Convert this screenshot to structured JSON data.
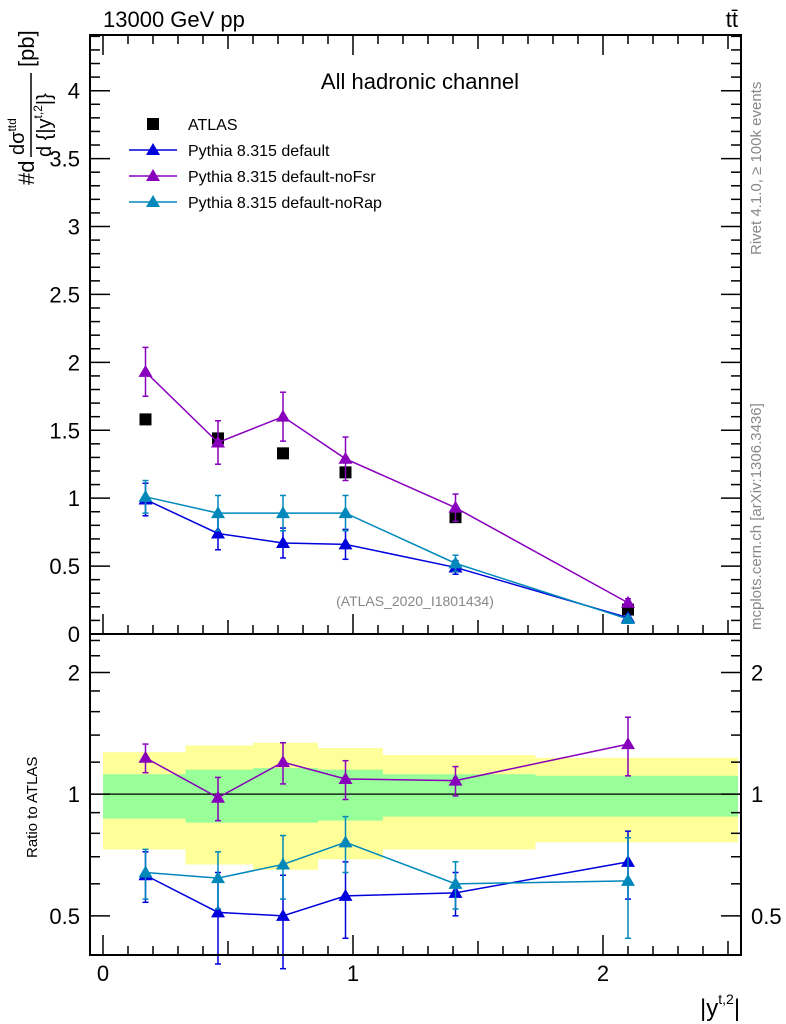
{
  "header": {
    "left": "13000 GeV pp",
    "right": "tt̄"
  },
  "side_text": {
    "rivet": "Rivet 4.1.0, ≥ 100k events",
    "mcplots": "mcplots.cern.ch [arXiv:1306.3436]"
  },
  "chart_data": [
    {
      "type": "scatter",
      "title": "All hadronic channel",
      "analysis_label": "(ATLAS_2020_I1801434)",
      "ylabel": {
        "prefix": "#d",
        "num": "dσ",
        "num_sup": "ttd",
        "den": "d {|y",
        "den_sup": "t,2",
        "den_end": "|}",
        "unit": "[pb]"
      },
      "xlim": [
        -0.052,
        2.552
      ],
      "ylim": [
        0,
        4.41
      ],
      "yticks": [
        "0",
        "0.5",
        "1",
        "1.5",
        "2",
        "2.5",
        "3",
        "3.5",
        "4"
      ],
      "x": [
        0.17,
        0.46,
        0.72,
        0.97,
        1.41,
        2.1
      ],
      "legend_position": "top-left",
      "series": [
        {
          "name": "ATLAS",
          "color": "#000000",
          "marker": "square",
          "values": [
            1.58,
            1.44,
            1.33,
            1.19,
            0.86,
            0.18
          ],
          "errors": [
            0.02,
            0.02,
            0.02,
            0.02,
            0.02,
            0.01
          ]
        },
        {
          "name": "Pythia 8.315 default",
          "color": "#0000dd",
          "marker": "triangle",
          "values": [
            0.99,
            0.74,
            0.67,
            0.66,
            0.49,
            0.12
          ],
          "errors": [
            0.12,
            0.12,
            0.11,
            0.11,
            0.05,
            0.02
          ]
        },
        {
          "name": "Pythia 8.315 default-noFsr",
          "color": "#8800bb",
          "marker": "triangle",
          "values": [
            1.93,
            1.41,
            1.6,
            1.29,
            0.93,
            0.23
          ],
          "errors": [
            0.18,
            0.16,
            0.18,
            0.16,
            0.1,
            0.03
          ]
        },
        {
          "name": "Pythia 8.315 default-noRap",
          "color": "#0088bb",
          "marker": "triangle",
          "values": [
            1.01,
            0.89,
            0.89,
            0.89,
            0.52,
            0.11
          ],
          "errors": [
            0.12,
            0.13,
            0.13,
            0.13,
            0.06,
            0.02
          ]
        }
      ]
    },
    {
      "type": "scatter",
      "ylabel": "Ratio to ATLAS",
      "xlabel": "|y",
      "xlabel_sup": "t,2",
      "xlabel_end": "|",
      "yscale": "log",
      "ylim": [
        0.4,
        2.49
      ],
      "yticks": [
        "0.5",
        "1",
        "2"
      ],
      "xticks": [
        "0",
        "1",
        "2"
      ],
      "x": [
        0.17,
        0.46,
        0.72,
        0.97,
        1.41,
        2.1
      ],
      "bin_edges": [
        0,
        0.33,
        0.6,
        0.86,
        1.12,
        1.73,
        2.54
      ],
      "band_total": {
        "color": "#ffff99",
        "upper": [
          1.27,
          1.32,
          1.34,
          1.3,
          1.25,
          1.23
        ],
        "lower": [
          0.73,
          0.67,
          0.65,
          0.69,
          0.73,
          0.76
        ]
      },
      "band_stat": {
        "color": "#99ff99",
        "upper": [
          1.12,
          1.15,
          1.16,
          1.15,
          1.12,
          1.11
        ],
        "lower": [
          0.87,
          0.85,
          0.85,
          0.86,
          0.88,
          0.88
        ]
      },
      "series": [
        {
          "name": "Pythia 8.315 default",
          "color": "#0000dd",
          "values": [
            0.63,
            0.51,
            0.5,
            0.56,
            0.57,
            0.68
          ],
          "errors": [
            0.09,
            0.13,
            0.13,
            0.12,
            0.07,
            0.13
          ]
        },
        {
          "name": "Pythia 8.315 default-noFsr",
          "color": "#8800bb",
          "values": [
            1.23,
            0.98,
            1.2,
            1.09,
            1.08,
            1.33
          ],
          "errors": [
            0.1,
            0.12,
            0.14,
            0.12,
            0.09,
            0.22
          ]
        },
        {
          "name": "Pythia 8.315 default-noRap",
          "color": "#0088bb",
          "values": [
            0.64,
            0.62,
            0.67,
            0.76,
            0.6,
            0.61
          ],
          "errors": [
            0.09,
            0.1,
            0.12,
            0.12,
            0.08,
            0.17
          ]
        }
      ]
    }
  ]
}
